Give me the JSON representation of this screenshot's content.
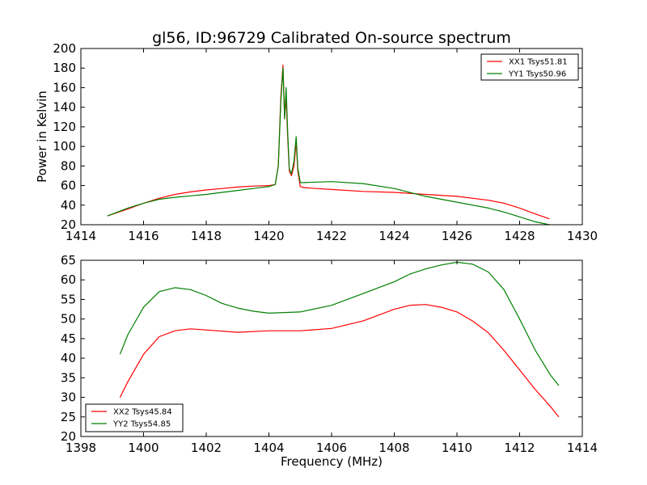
{
  "figure": {
    "title": "gl56, ID:96729 Calibrated On-source spectrum"
  },
  "chart_data": [
    {
      "type": "line",
      "title": "gl56, ID:96729 Calibrated On-source spectrum",
      "xlabel": "",
      "ylabel": "Power in Kelvin",
      "xlim": [
        1414,
        1430
      ],
      "ylim": [
        20,
        200
      ],
      "xticks": [
        1414,
        1416,
        1418,
        1420,
        1422,
        1424,
        1426,
        1428,
        1430
      ],
      "yticks": [
        20,
        40,
        60,
        80,
        100,
        120,
        140,
        160,
        180,
        200
      ],
      "grid": false,
      "legend_position": "top-right",
      "series": [
        {
          "name": "XX1 Tsys51.81",
          "color": "#ff0000",
          "x": [
            1414.85,
            1415.5,
            1416,
            1416.5,
            1417,
            1417.5,
            1418,
            1418.5,
            1419,
            1419.5,
            1420,
            1420.2,
            1420.3,
            1420.38,
            1420.45,
            1420.5,
            1420.55,
            1420.6,
            1420.65,
            1420.72,
            1420.8,
            1420.87,
            1420.92,
            1421.0,
            1421.1,
            1421.5,
            1422,
            1423,
            1424,
            1425,
            1426,
            1427,
            1427.5,
            1428,
            1428.5,
            1428.95
          ],
          "y": [
            29,
            36,
            42,
            47,
            51,
            53.5,
            55.5,
            57,
            58.5,
            59.5,
            60,
            61,
            80,
            150,
            183,
            130,
            150,
            110,
            75,
            70,
            80,
            105,
            75,
            59,
            58,
            57,
            56,
            54,
            53,
            51,
            49,
            45,
            42,
            37,
            31,
            26
          ]
        },
        {
          "name": "YY1 Tsys50.96",
          "color": "#008000",
          "x": [
            1414.85,
            1415.5,
            1416,
            1416.5,
            1417,
            1417.5,
            1418,
            1418.5,
            1419,
            1419.5,
            1420,
            1420.2,
            1420.3,
            1420.38,
            1420.45,
            1420.5,
            1420.55,
            1420.6,
            1420.65,
            1420.72,
            1420.8,
            1420.87,
            1420.92,
            1421.0,
            1421.1,
            1421.5,
            1422,
            1423,
            1424,
            1425,
            1426,
            1427,
            1427.5,
            1428,
            1428.5,
            1428.95
          ],
          "y": [
            29,
            37,
            42,
            46,
            48,
            49.5,
            51,
            53,
            55,
            57,
            59,
            61,
            80,
            145,
            180,
            128,
            160,
            115,
            77,
            72,
            85,
            110,
            78,
            63,
            63,
            63.5,
            64,
            62,
            57,
            49,
            43,
            37,
            33,
            28,
            23,
            20
          ]
        }
      ]
    },
    {
      "type": "line",
      "title": "",
      "xlabel": "Frequency (MHz)",
      "ylabel": "",
      "xlim": [
        1398,
        1414
      ],
      "ylim": [
        20,
        65
      ],
      "xticks": [
        1398,
        1400,
        1402,
        1404,
        1406,
        1408,
        1410,
        1412,
        1414
      ],
      "yticks": [
        20,
        25,
        30,
        35,
        40,
        45,
        50,
        55,
        60,
        65
      ],
      "grid": false,
      "legend_position": "bottom-left",
      "series": [
        {
          "name": "XX2 Tsys45.84",
          "color": "#ff0000",
          "x": [
            1399.25,
            1399.5,
            1400,
            1400.5,
            1401,
            1401.5,
            1402,
            1403,
            1404,
            1405,
            1406,
            1407,
            1408,
            1408.5,
            1409,
            1409.5,
            1410,
            1410.5,
            1411,
            1411.5,
            1412,
            1412.5,
            1413,
            1413.25
          ],
          "y": [
            30,
            34,
            41,
            45.5,
            47,
            47.5,
            47.2,
            46.6,
            47,
            47,
            47.6,
            49.5,
            52.5,
            53.5,
            53.7,
            53,
            51.8,
            49.5,
            46.5,
            42,
            37,
            32,
            27.5,
            25
          ]
        },
        {
          "name": "YY2 Tsys54.85",
          "color": "#008000",
          "x": [
            1399.25,
            1399.5,
            1400,
            1400.5,
            1401,
            1401.5,
            1402,
            1402.5,
            1403,
            1403.5,
            1404,
            1405,
            1406,
            1407,
            1408,
            1408.5,
            1409,
            1409.5,
            1410,
            1410.5,
            1411,
            1411.5,
            1412,
            1412.5,
            1413,
            1413.25
          ],
          "y": [
            41,
            46,
            53,
            57,
            58,
            57.5,
            56,
            54,
            52.8,
            52,
            51.5,
            51.8,
            53.5,
            56.5,
            59.5,
            61.5,
            62.8,
            63.8,
            64.5,
            64,
            62,
            57.5,
            50,
            42,
            35.5,
            33
          ]
        }
      ]
    }
  ]
}
